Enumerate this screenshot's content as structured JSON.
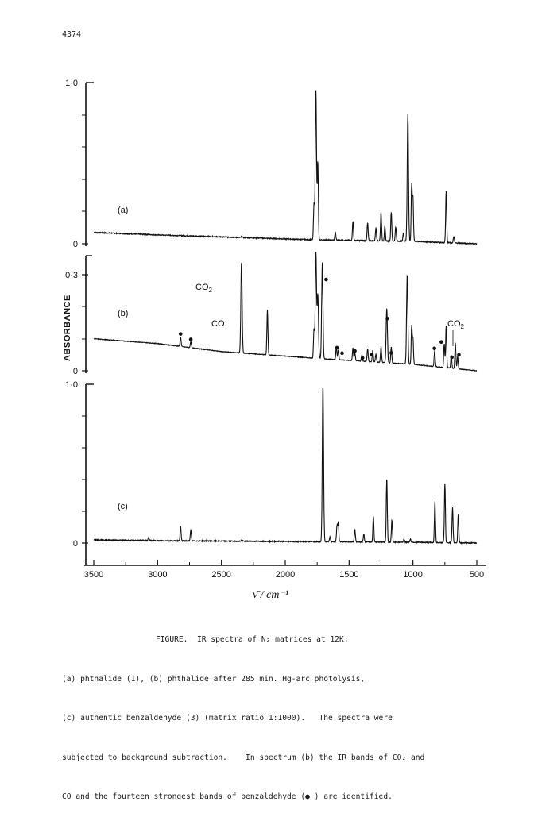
{
  "page_number": "4374",
  "caption": {
    "line1": "FIGURE.  IR spectra of N₂ matrices at 12K:",
    "line2": "(a) phthalide (1), (b) phthalide after 285 min. Hg-arc photolysis,",
    "line3": "(c) authentic benzaldehyde (3) (matrix ratio 1:1000).   The spectra were",
    "line4": "subjected to background subtraction.    In spectrum (b) the IR bands of CO₂ and",
    "line5": "CO and the fourteen strongest bands of benzaldehyde (● ) are identified."
  },
  "chart_data": [
    {
      "type": "line",
      "panel_label": "(a)",
      "ylabel": "ABSORBANCE",
      "y_ticks": [
        "1·0",
        "0"
      ],
      "ylim": [
        0,
        1.0
      ],
      "xlim": [
        3500,
        500
      ],
      "baseline": {
        "x": [
          3500,
          3000,
          2000,
          1800,
          1000,
          500
        ],
        "y": [
          0.07,
          0.055,
          0.03,
          0.025,
          0.015,
          0.0
        ]
      },
      "peaks": [
        {
          "x": 2340,
          "y": 0.01
        },
        {
          "x": 1775,
          "y": 0.22
        },
        {
          "x": 1760,
          "y": 0.93
        },
        {
          "x": 1745,
          "y": 0.48
        },
        {
          "x": 1608,
          "y": 0.05
        },
        {
          "x": 1470,
          "y": 0.12
        },
        {
          "x": 1355,
          "y": 0.11
        },
        {
          "x": 1290,
          "y": 0.08
        },
        {
          "x": 1250,
          "y": 0.18
        },
        {
          "x": 1220,
          "y": 0.09
        },
        {
          "x": 1170,
          "y": 0.18
        },
        {
          "x": 1135,
          "y": 0.09
        },
        {
          "x": 1075,
          "y": 0.05
        },
        {
          "x": 1040,
          "y": 0.79
        },
        {
          "x": 1010,
          "y": 0.35
        },
        {
          "x": 1000,
          "y": 0.27
        },
        {
          "x": 740,
          "y": 0.32
        },
        {
          "x": 680,
          "y": 0.04
        }
      ]
    },
    {
      "type": "line",
      "panel_label": "(b)",
      "y_ticks": [
        "0·3",
        "0"
      ],
      "ylim": [
        0,
        0.3
      ],
      "xlim": [
        3500,
        500
      ],
      "annotations": [
        "CO2",
        "CO",
        "CO2"
      ],
      "baseline": {
        "x": [
          3500,
          3000,
          2500,
          1800,
          1000,
          500
        ],
        "y": [
          0.1,
          0.085,
          0.06,
          0.04,
          0.02,
          0.0
        ]
      },
      "peaks": [
        {
          "x": 2820,
          "y": 0.03
        },
        {
          "x": 2740,
          "y": 0.02
        },
        {
          "x": 2343,
          "y": 0.285
        },
        {
          "x": 2140,
          "y": 0.14
        },
        {
          "x": 1775,
          "y": 0.09
        },
        {
          "x": 1760,
          "y": 0.33
        },
        {
          "x": 1745,
          "y": 0.2
        },
        {
          "x": 1710,
          "y": 0.3
        },
        {
          "x": 1600,
          "y": 0.04
        },
        {
          "x": 1585,
          "y": 0.03
        },
        {
          "x": 1470,
          "y": 0.04
        },
        {
          "x": 1455,
          "y": 0.025
        },
        {
          "x": 1400,
          "y": 0.02
        },
        {
          "x": 1355,
          "y": 0.04
        },
        {
          "x": 1315,
          "y": 0.035
        },
        {
          "x": 1290,
          "y": 0.025
        },
        {
          "x": 1250,
          "y": 0.05
        },
        {
          "x": 1205,
          "y": 0.17
        },
        {
          "x": 1170,
          "y": 0.05
        },
        {
          "x": 1045,
          "y": 0.28
        },
        {
          "x": 1010,
          "y": 0.12
        },
        {
          "x": 1000,
          "y": 0.08
        },
        {
          "x": 830,
          "y": 0.05
        },
        {
          "x": 755,
          "y": 0.075
        },
        {
          "x": 740,
          "y": 0.13
        },
        {
          "x": 700,
          "y": 0.04
        },
        {
          "x": 668,
          "y": 0.08
        },
        {
          "x": 650,
          "y": 0.04
        }
      ],
      "dot_marks": [
        {
          "x": 2820,
          "y": 0.115
        },
        {
          "x": 2740,
          "y": 0.098
        },
        {
          "x": 1680,
          "y": 0.285
        },
        {
          "x": 1595,
          "y": 0.072
        },
        {
          "x": 1555,
          "y": 0.055
        },
        {
          "x": 1455,
          "y": 0.062
        },
        {
          "x": 1395,
          "y": 0.04
        },
        {
          "x": 1325,
          "y": 0.05
        },
        {
          "x": 1200,
          "y": 0.163
        },
        {
          "x": 1170,
          "y": 0.056
        },
        {
          "x": 832,
          "y": 0.07
        },
        {
          "x": 778,
          "y": 0.09
        },
        {
          "x": 695,
          "y": 0.042
        },
        {
          "x": 640,
          "y": 0.05
        }
      ]
    },
    {
      "type": "line",
      "panel_label": "(c)",
      "y_ticks": [
        "1·0",
        "0"
      ],
      "ylim": [
        0,
        1.0
      ],
      "xlim": [
        3500,
        500
      ],
      "x_ticks": [
        3500,
        3000,
        2500,
        2000,
        1500,
        1000,
        500
      ],
      "xlabel": "ν̄ / cm⁻¹",
      "baseline": {
        "x": [
          3500,
          3000,
          2000,
          1000,
          500
        ],
        "y": [
          0.02,
          0.015,
          0.01,
          0.005,
          0.0
        ]
      },
      "peaks": [
        {
          "x": 3070,
          "y": 0.02
        },
        {
          "x": 2820,
          "y": 0.09
        },
        {
          "x": 2740,
          "y": 0.07
        },
        {
          "x": 2340,
          "y": 0.01
        },
        {
          "x": 1705,
          "y": 0.98
        },
        {
          "x": 1650,
          "y": 0.03
        },
        {
          "x": 1595,
          "y": 0.1
        },
        {
          "x": 1585,
          "y": 0.12
        },
        {
          "x": 1455,
          "y": 0.08
        },
        {
          "x": 1385,
          "y": 0.05
        },
        {
          "x": 1310,
          "y": 0.16
        },
        {
          "x": 1205,
          "y": 0.4
        },
        {
          "x": 1165,
          "y": 0.14
        },
        {
          "x": 1070,
          "y": 0.02
        },
        {
          "x": 1020,
          "y": 0.02
        },
        {
          "x": 828,
          "y": 0.26
        },
        {
          "x": 750,
          "y": 0.37
        },
        {
          "x": 690,
          "y": 0.22
        },
        {
          "x": 645,
          "y": 0.18
        }
      ]
    }
  ]
}
